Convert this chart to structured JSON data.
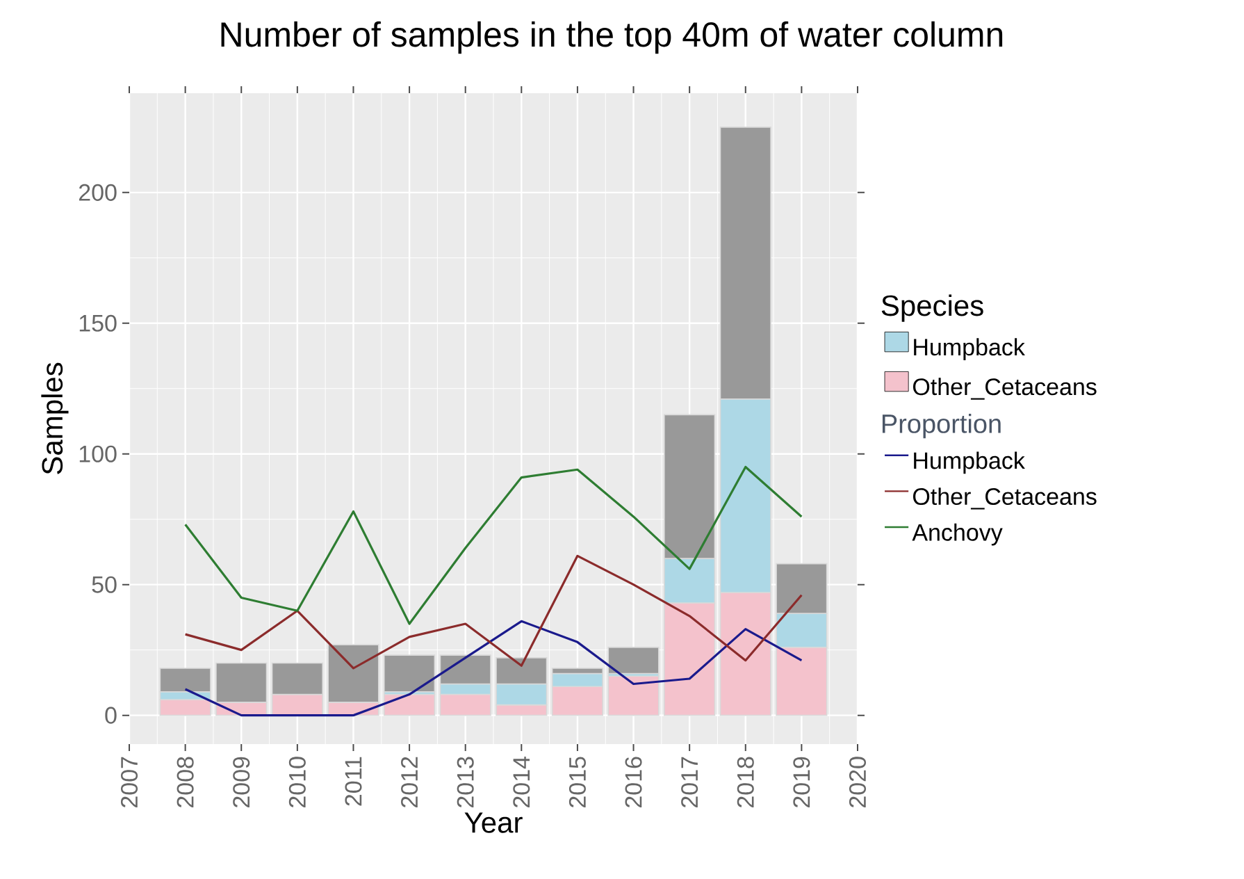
{
  "chart_data": {
    "type": "bar",
    "title": "Number of samples in the top 40m of water column",
    "xlabel": "Year",
    "ylabel": "Samples",
    "legend_title": "Species",
    "annotations": [
      "Proportion"
    ],
    "stacked": true,
    "legend": "right",
    "grid": true,
    "x": [
      2008,
      2009,
      2010,
      2011,
      2012,
      2013,
      2014,
      2015,
      2016,
      2017,
      2018,
      2019
    ],
    "xlim": [
      2007,
      2020
    ],
    "xticks": [
      2007,
      2008,
      2009,
      2010,
      2011,
      2012,
      2013,
      2014,
      2015,
      2016,
      2017,
      2018,
      2019,
      2020
    ],
    "ylim": [
      -11,
      238
    ],
    "yticks": [
      0,
      50,
      100,
      150,
      200
    ],
    "series": [
      {
        "name": "Other_Cetaceans",
        "color": "#f4c2cc",
        "values": [
          6,
          5,
          8,
          5,
          8,
          8,
          4,
          11,
          15,
          43,
          47,
          26
        ]
      },
      {
        "name": "Humpback",
        "color": "#add8e6",
        "values": [
          3,
          0,
          0,
          0,
          1,
          4,
          8,
          5,
          1,
          17,
          74,
          13
        ]
      },
      {
        "color": "#999999",
        "values": [
          9,
          15,
          12,
          22,
          14,
          11,
          10,
          2,
          10,
          55,
          104,
          19
        ]
      },
      {
        "name": "Humpback",
        "type": "line",
        "color": "#1a1a8c",
        "values": [
          10,
          0,
          0,
          0,
          8,
          22,
          36,
          28,
          12,
          14,
          33,
          21
        ]
      },
      {
        "name": "Other_Cetaceans",
        "type": "line",
        "color": "#8b2b2b",
        "values": [
          31,
          25,
          40,
          18,
          30,
          35,
          19,
          61,
          50,
          38,
          21,
          46
        ]
      },
      {
        "name": "Anchovy",
        "type": "line",
        "color": "#2e7d32",
        "values": [
          73,
          45,
          40,
          78,
          35,
          64,
          91,
          94,
          76,
          56,
          95,
          76
        ]
      }
    ]
  }
}
